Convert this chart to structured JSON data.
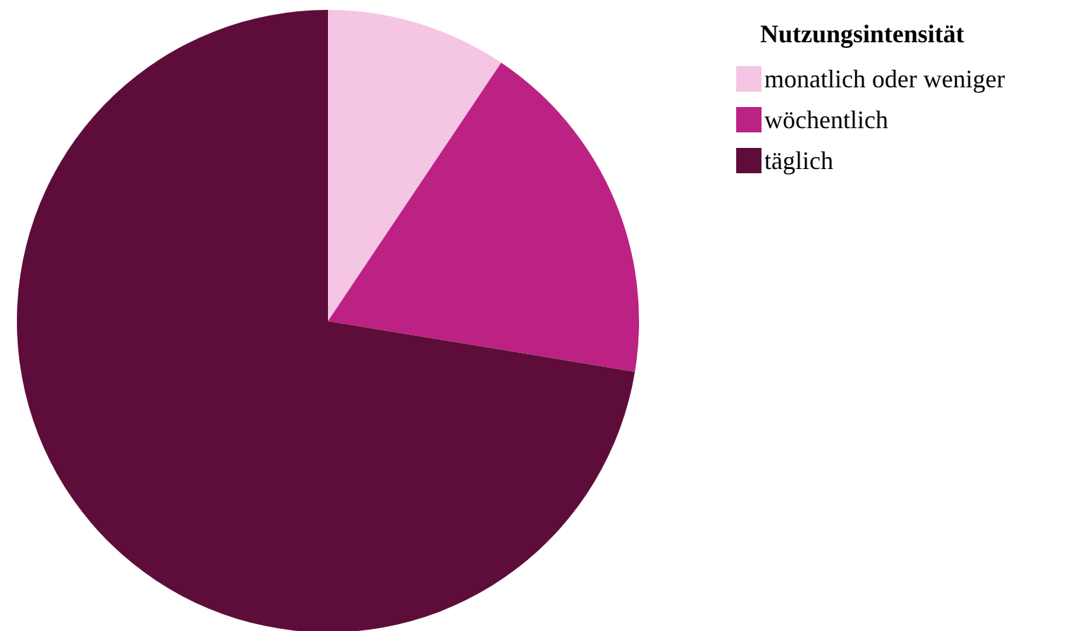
{
  "chart_data": {
    "type": "pie",
    "legend_title": "Nutzungsintensität",
    "legend": "top right",
    "categories": [
      "monatlich oder weniger",
      "wöchentlich",
      "täglich"
    ],
    "values": [
      9.4,
      18.2,
      72.4
    ],
    "colors": [
      "#f4c6e4",
      "#bb2283",
      "#5e0d3b"
    ]
  }
}
